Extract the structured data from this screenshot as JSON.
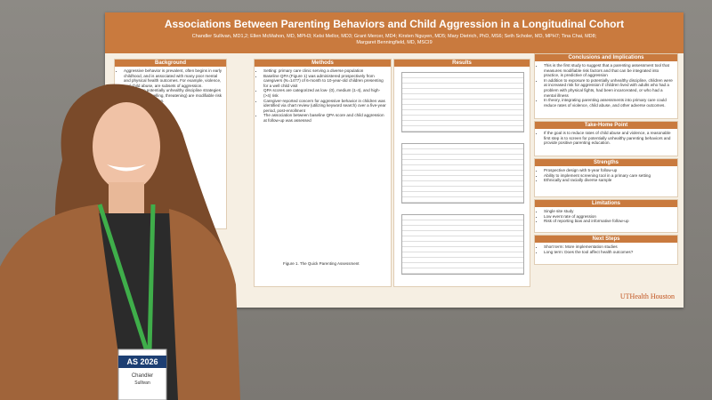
{
  "poster": {
    "title": "Associations Between Parenting Behaviors and Child Aggression in a Longitudinal Cohort",
    "authors": "Chandler Sullivan, MD1,2; Ellen McMahon, MD, MPH3; Kelsi Mellor, MD3; Grant Mercer, MD4; Kirsten Nguyen, MD5; Mary Dietrich, PhD, MS6; Seth Scholer, MD, MPH7; Tina Chai, MD8; Margaret Benningfield, MD, MSCI9",
    "logo": "UTHealth Houston",
    "sections": [
      {
        "heading": "Background",
        "items": [
          "Aggressive behavior is prevalent, often begins in early childhood, and is associated with many poor mental and physical health outcomes. For example, violence, and child abuse, are subsets of aggression.",
          "Exposure to potentially unhealthy discipline strategies (e.g. spanking, yelling, threatening) are modifiable risk factors for aggression."
        ]
      },
      {
        "heading": "Methods",
        "items": [
          "Setting: primary care clinic serving a diverse population",
          "Baseline QPA (Figure 1) was administered prospectively from caregivers (N=1477) of 6-month to 10-year-old children presenting for a well child visit",
          "QPA scores are categorized as low- (0), medium (1-4), and high- (>4) risk",
          "Caregiver-reported concern for aggressive behavior in children was identified via chart review (utilizing keyword search) over a five-year period, post-enrollment",
          "The association between baseline QPA score and child aggression at follow-up was assessed"
        ]
      },
      {
        "heading": "Results",
        "items": []
      },
      {
        "heading": "Conclusions and Implications",
        "items": [
          "This is the first study to suggest that a parenting assessment tool that measures modifiable risk factors and that can be integrated into practice, is predictive of aggression",
          "In addition to exposure to potentially unhealthy discipline, children were at increased risk for aggression if children lived with adults who had a problem with physical fights, had been incarcerated, or who had a mental illness",
          "In theory, integrating parenting assessments into primary care could reduce rates of violence, child abuse, and other adverse outcomes."
        ]
      },
      {
        "heading": "Take-Home Point",
        "items": [
          "If the goal is to reduce rates of child abuse and violence, a reasonable first step is to screen for potentially unhealthy parenting behaviors and provide positive parenting education."
        ]
      },
      {
        "heading": "Strengths",
        "items": [
          "Prospective design with 5-year follow-up",
          "Ability to implement screening tool in a primary care setting",
          "Ethnically and racially diverse sample"
        ]
      },
      {
        "heading": "Limitations",
        "items": [
          "Single site study",
          "Low event rate of aggression",
          "Risk of reporting bias and informative follow-up"
        ]
      },
      {
        "heading": "Next Steps",
        "items": [
          "Short term: More implementation studies",
          "Long term: Does the tool affect health outcomes?"
        ]
      }
    ],
    "figure_caption": "Figure 1. The Quick Parenting Assessment"
  },
  "badge": {
    "event": "AS 2026",
    "first_name": "Chandler",
    "last_name": "Sullivan"
  }
}
